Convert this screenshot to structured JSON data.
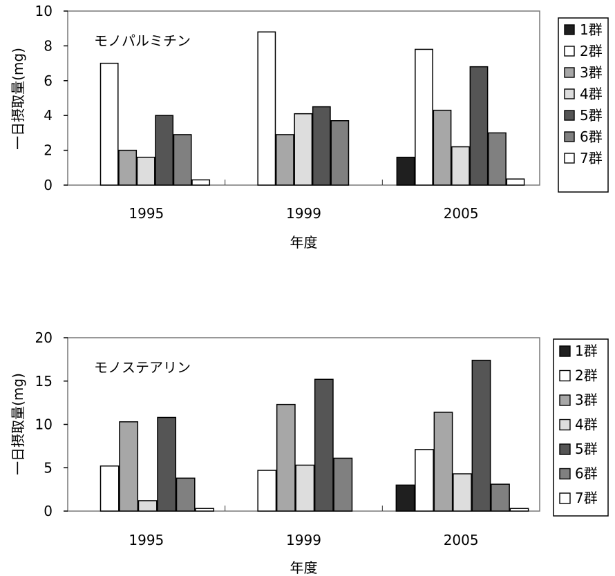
{
  "chart_data": [
    {
      "type": "bar",
      "title": "モノパルミチン",
      "xlabel": "年度",
      "ylabel": "一日摂取量(mg)",
      "categories": [
        "1995",
        "1999",
        "2005"
      ],
      "ylim": [
        0,
        10
      ],
      "yticks": [
        "0",
        "2",
        "4",
        "6",
        "8",
        "10"
      ],
      "legend_position": "right",
      "series": [
        {
          "name": "1群",
          "color": "#1f1f1f",
          "values": [
            0,
            0,
            1.6
          ]
        },
        {
          "name": "2群",
          "color": "#ffffff",
          "values": [
            7.0,
            8.8,
            7.8
          ]
        },
        {
          "name": "3群",
          "color": "#a7a7a7",
          "values": [
            2.0,
            2.9,
            4.3
          ]
        },
        {
          "name": "4群",
          "color": "#dddddd",
          "values": [
            1.6,
            4.1,
            2.2
          ]
        },
        {
          "name": "5群",
          "color": "#555555",
          "values": [
            4.0,
            4.5,
            6.8
          ]
        },
        {
          "name": "6群",
          "color": "#808080",
          "values": [
            2.9,
            3.7,
            3.0
          ]
        },
        {
          "name": "7群",
          "color": "#ffffff",
          "values": [
            0.3,
            0,
            0.35
          ]
        }
      ]
    },
    {
      "type": "bar",
      "title": "モノステアリン",
      "xlabel": "年度",
      "ylabel": "一日摂取量(mg)",
      "categories": [
        "1995",
        "1999",
        "2005"
      ],
      "ylim": [
        0,
        20
      ],
      "yticks": [
        "0",
        "5",
        "10",
        "15",
        "20"
      ],
      "legend_position": "right",
      "series": [
        {
          "name": "1群",
          "color": "#1f1f1f",
          "values": [
            0,
            0,
            3.0
          ]
        },
        {
          "name": "2群",
          "color": "#ffffff",
          "values": [
            5.2,
            4.7,
            7.1
          ]
        },
        {
          "name": "3群",
          "color": "#a7a7a7",
          "values": [
            10.3,
            12.3,
            11.4
          ]
        },
        {
          "name": "4群",
          "color": "#dddddd",
          "values": [
            1.2,
            5.3,
            4.3
          ]
        },
        {
          "name": "5群",
          "color": "#555555",
          "values": [
            10.8,
            15.2,
            17.4
          ]
        },
        {
          "name": "6群",
          "color": "#808080",
          "values": [
            3.8,
            6.1,
            3.1
          ]
        },
        {
          "name": "7群",
          "color": "#ffffff",
          "values": [
            0.3,
            0,
            0.3
          ]
        }
      ]
    }
  ]
}
